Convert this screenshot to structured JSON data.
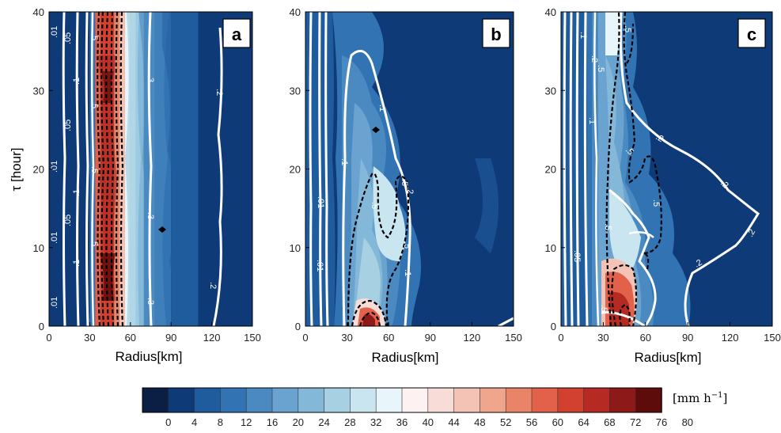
{
  "colors": {
    "contour_white": "#ffffff",
    "contour_black": "#000000",
    "colorbar": [
      "#0b1f45",
      "#0f3a78",
      "#1f5c9e",
      "#3273b3",
      "#4a8ac0",
      "#6aa3cf",
      "#84b8d9",
      "#a7d1e3",
      "#c8e5f0",
      "#e8f5fa",
      "#fdf1f1",
      "#f8dcd8",
      "#f4c3b5",
      "#f0a58d",
      "#ea8468",
      "#e2614a",
      "#d2402f",
      "#b52a23",
      "#8d1a18",
      "#5e0b0b"
    ]
  },
  "chart_data": [
    {
      "type": "heatmap",
      "panel_label": "a",
      "xlabel": "Radius[km]",
      "ylabel": "τ [hour]",
      "xlim": [
        0,
        150
      ],
      "ylim": [
        0,
        40
      ],
      "xticks": [
        "0",
        "30",
        "60",
        "90",
        "120",
        "150"
      ],
      "yticks": [
        "0",
        "10",
        "20",
        "30",
        "40"
      ],
      "bands": [
        [
          0,
          30,
          "#0f3a78"
        ],
        [
          30,
          34,
          "#3273b3"
        ],
        [
          34,
          38,
          "#e2614a"
        ],
        [
          38,
          48,
          "#d2402f"
        ],
        [
          48,
          52,
          "#ea8468"
        ],
        [
          52,
          56,
          "#f4c3b5"
        ],
        [
          56,
          60,
          "#e8f5fa"
        ],
        [
          60,
          64,
          "#c8e5f0"
        ],
        [
          64,
          70,
          "#84b8d9"
        ],
        [
          70,
          78,
          "#4a8ac0"
        ],
        [
          78,
          90,
          "#3273b3"
        ],
        [
          90,
          110,
          "#1f5c9e"
        ],
        [
          110,
          150,
          "#0f3a78"
        ]
      ],
      "contours_white": [
        {
          "x": 8,
          "label": ".01",
          "label_y": [
            38,
            21,
            12,
            3
          ]
        },
        {
          "x": 15,
          "label": ".05",
          "label_y": [
            37,
            26,
            14
          ]
        },
        {
          "x": 22,
          "label": ".1",
          "label_y": [
            31,
            17,
            8
          ]
        },
        {
          "x": 72,
          "label": ".3",
          "label_y": [
            32,
            14,
            3
          ]
        },
        {
          "x": 123,
          "label": ".2",
          "label_y": [
            30,
            5
          ]
        }
      ],
      "contours_black_label": ".5",
      "contours_black_label_y": [
        38,
        30,
        20,
        11
      ]
    },
    {
      "type": "heatmap",
      "panel_label": "b",
      "xlabel": "Radius[km]",
      "ylabel": "",
      "xlim": [
        0,
        150
      ],
      "ylim": [
        0,
        40
      ],
      "xticks": [
        "0",
        "30",
        "60",
        "90",
        "120",
        "150"
      ],
      "yticks": [
        "0",
        "10",
        "20",
        "30",
        "40"
      ],
      "contours_white_labels": [
        ".01",
        ".1",
        ".2",
        ".1"
      ],
      "contours_black_label": ".5"
    },
    {
      "type": "heatmap",
      "panel_label": "c",
      "xlabel": "Radius[km]",
      "ylabel": "",
      "xlim": [
        0,
        150
      ],
      "ylim": [
        0,
        40
      ],
      "xticks": [
        "0",
        "30",
        "60",
        "90",
        "120",
        "150"
      ],
      "yticks": [
        "0",
        "10",
        "20",
        "30",
        "40"
      ],
      "contours_white_labels": [
        ".05",
        ".1",
        ".2",
        ".2",
        ".2",
        ".2",
        ".2"
      ],
      "contours_black_label": ".5"
    }
  ],
  "colorbar": {
    "unit": "[mm h",
    "unit_exp": "−1",
    "unit_close": "]",
    "ticks": [
      "0",
      "4",
      "8",
      "12",
      "16",
      "20",
      "24",
      "28",
      "32",
      "36",
      "40",
      "44",
      "48",
      "52",
      "56",
      "60",
      "64",
      "68",
      "72",
      "76",
      "80"
    ]
  }
}
